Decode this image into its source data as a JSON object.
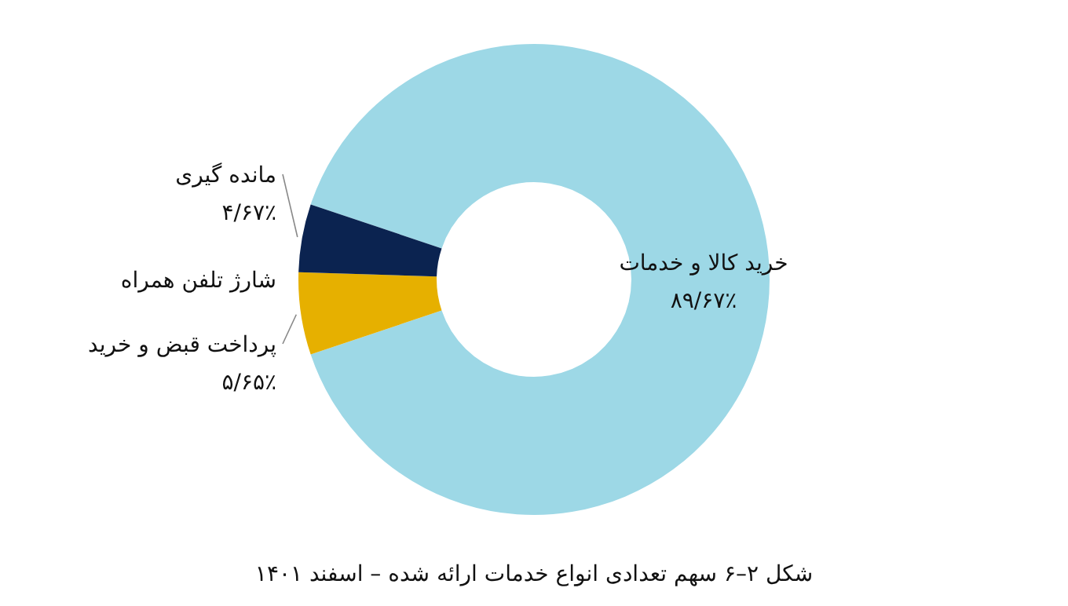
{
  "chart_data": {
    "type": "donut",
    "title": "شکل ۲–۶ سهم تعدادی انواع خدمات ارائه شده – اسفند ۱۴۰۱",
    "categories": [
      "خرید کالا و خدمات",
      "پرداخت قبض و خرید",
      "شارژ تلفن همراه",
      "مانده گیری"
    ],
    "values": [
      89.67,
      5.65,
      null,
      4.67
    ],
    "value_labels": [
      "۸۹/۶۷٪",
      "۵/۶۵٪",
      null,
      "۴/۶۷٪"
    ],
    "colors": [
      "#9dd8e6",
      "#e6b000",
      null,
      "#0b2350"
    ]
  }
}
